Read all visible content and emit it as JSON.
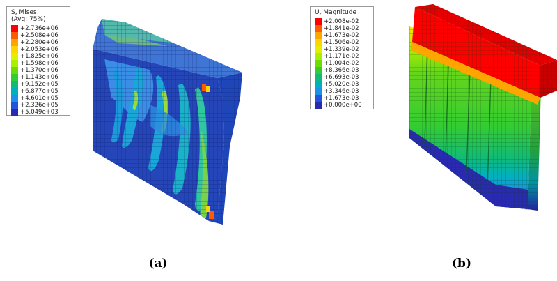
{
  "panel_a": {
    "caption": "(a)",
    "legend": {
      "title_lines": [
        "S, Mises",
        "(Avg: 75%)"
      ],
      "values": [
        "+2.736e+06",
        "+2.508e+06",
        "+2.280e+06",
        "+2.053e+06",
        "+1.825e+06",
        "+1.598e+06",
        "+1.370e+06",
        "+1.143e+06",
        "+9.152e+05",
        "+6.877e+05",
        "+4.601e+05",
        "+2.326e+05",
        "+5.049e+03"
      ],
      "colors": [
        "#ff0000",
        "#ff5a00",
        "#ffa500",
        "#ffd500",
        "#e2f000",
        "#aaee00",
        "#6ddc00",
        "#33cc33",
        "#11bb77",
        "#00b0c0",
        "#1e90e8",
        "#2255dd",
        "#2a2ab0"
      ]
    }
  },
  "panel_b": {
    "caption": "(b)",
    "legend": {
      "title_lines": [
        "U, Magnitude"
      ],
      "values": [
        "+2.008e-02",
        "+1.841e-02",
        "+1.673e-02",
        "+1.506e-02",
        "+1.339e-02",
        "+1.171e-02",
        "+1.004e-02",
        "+8.366e-03",
        "+6.693e-03",
        "+5.020e-03",
        "+3.346e-03",
        "+1.673e-03",
        "+0.000e+00"
      ],
      "colors": [
        "#ff0000",
        "#ff5a00",
        "#ffa500",
        "#ffd500",
        "#e2f000",
        "#aaee00",
        "#6ddc00",
        "#33cc33",
        "#11bb77",
        "#00b0c0",
        "#1e90e8",
        "#2255dd",
        "#2a2ab0"
      ]
    }
  }
}
